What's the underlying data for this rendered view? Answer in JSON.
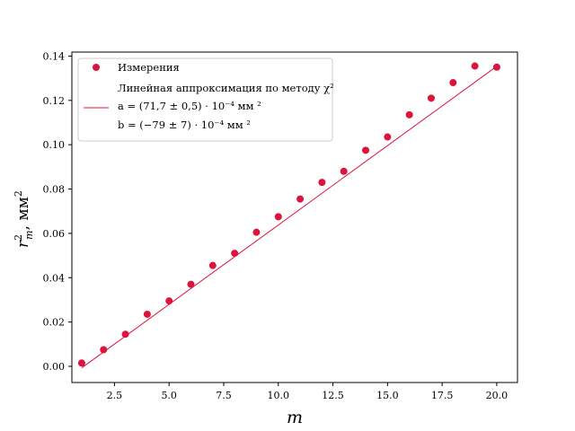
{
  "chart_data": {
    "type": "scatter",
    "xlabel": "m",
    "ylabel": {
      "main": "r",
      "sup": "2",
      "sub": "m",
      "unit": ", мм",
      "unit_sup": "2"
    },
    "xlim": [
      0.55,
      20.95
    ],
    "ylim": [
      -0.0073,
      0.1418
    ],
    "x_ticks": [
      2.5,
      5.0,
      7.5,
      10.0,
      12.5,
      15.0,
      17.5,
      20.0
    ],
    "x_tick_labels": [
      "2.5",
      "5.0",
      "7.5",
      "10.0",
      "12.5",
      "15.0",
      "17.5",
      "20.0"
    ],
    "y_ticks": [
      0.0,
      0.02,
      0.04,
      0.06,
      0.08,
      0.1,
      0.12,
      0.14
    ],
    "y_tick_labels": [
      "0.00",
      "0.02",
      "0.04",
      "0.06",
      "0.08",
      "0.10",
      "0.12",
      "0.14"
    ],
    "grid": false,
    "legend_position": "top-left",
    "series": [
      {
        "name": "Измерения",
        "kind": "scatter",
        "color": "#dc143c",
        "x": [
          1,
          2,
          3,
          4,
          5,
          6,
          7,
          8,
          9,
          10,
          11,
          12,
          13,
          14,
          15,
          16,
          17,
          18,
          19,
          20
        ],
        "y": [
          0.0015,
          0.0075,
          0.0145,
          0.0235,
          0.0295,
          0.037,
          0.0455,
          0.051,
          0.0605,
          0.0675,
          0.0755,
          0.083,
          0.088,
          0.0975,
          0.1035,
          0.1135,
          0.121,
          0.128,
          0.1355,
          0.135
        ]
      },
      {
        "name": "Линейная аппроксимация по методу χ²",
        "kind": "line",
        "color": "#dc143c",
        "x": [
          1,
          20
        ],
        "y": [
          -0.0007,
          0.1354
        ]
      }
    ],
    "legend_lines": [
      "a = (71,7 ± 0,5) · 10⁻⁴ мм ²",
      "b = (−79 ± 7) · 10⁻⁴ мм ²"
    ]
  }
}
